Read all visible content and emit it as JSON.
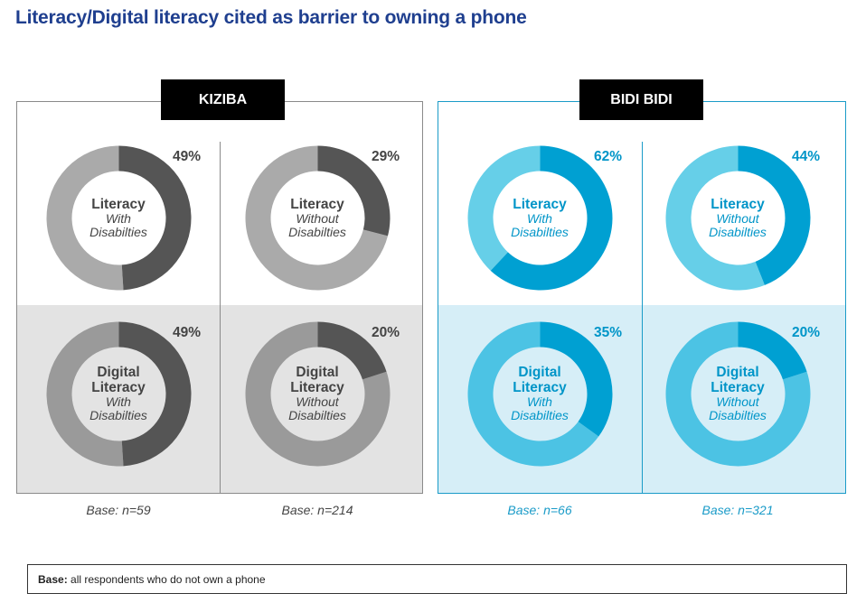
{
  "title": "Literacy/Digital literacy cited as barrier to owning a phone",
  "colors": {
    "title": "#1f3f8f",
    "kiziba_dark": "#555555",
    "kiziba_light_top": "#aaaaaa",
    "kiziba_light_bottom": "#9a9a9a",
    "bidi_dark": "#00a0d2",
    "bidi_light_top": "#66cfe8",
    "bidi_light_bottom": "#4cc3e4"
  },
  "sites": [
    {
      "name": "KIZIBA",
      "bases": [
        "Base: n=59",
        "Base: n=214"
      ],
      "base_color": "#444444",
      "text_color": "#444444",
      "charts": [
        {
          "measure_lines": [
            "Literacy"
          ],
          "group_lines": [
            "With",
            "Disabilties"
          ],
          "pct_label": "49%"
        },
        {
          "measure_lines": [
            "Literacy"
          ],
          "group_lines": [
            "Without",
            "Disabilties"
          ],
          "pct_label": "29%"
        },
        {
          "measure_lines": [
            "Digital",
            "Literacy"
          ],
          "group_lines": [
            "With",
            "Disabilties"
          ],
          "pct_label": "49%"
        },
        {
          "measure_lines": [
            "Digital",
            "Literacy"
          ],
          "group_lines": [
            "Without",
            "Disabilties"
          ],
          "pct_label": "20%"
        }
      ]
    },
    {
      "name": "BIDI BIDI",
      "bases": [
        "Base: n=66",
        "Base: n=321"
      ],
      "base_color": "#1a9bc8",
      "text_color": "#0095c8",
      "charts": [
        {
          "measure_lines": [
            "Literacy"
          ],
          "group_lines": [
            "With",
            "Disabilties"
          ],
          "pct_label": "62%"
        },
        {
          "measure_lines": [
            "Literacy"
          ],
          "group_lines": [
            "Without",
            "Disabilties"
          ],
          "pct_label": "44%"
        },
        {
          "measure_lines": [
            "Digital",
            "Literacy"
          ],
          "group_lines": [
            "With",
            "Disabilties"
          ],
          "pct_label": "35%"
        },
        {
          "measure_lines": [
            "Digital",
            "Literacy"
          ],
          "group_lines": [
            "Without",
            "Disabilties"
          ],
          "pct_label": "20%"
        }
      ]
    }
  ],
  "note": {
    "label": "Base:",
    "text": "all respondents who do not own a phone"
  },
  "chart_data": {
    "type": "pie",
    "variant": "donut",
    "title": "Literacy/Digital literacy cited as barrier to owning a phone",
    "unit": "%",
    "charts": [
      {
        "site": "KIZIBA",
        "measure": "Literacy",
        "group": "With Disabilties",
        "value": 49,
        "base": "n=59"
      },
      {
        "site": "KIZIBA",
        "measure": "Literacy",
        "group": "Without Disabilties",
        "value": 29,
        "base": "n=214"
      },
      {
        "site": "KIZIBA",
        "measure": "Digital Literacy",
        "group": "With Disabilties",
        "value": 49,
        "base": "n=59"
      },
      {
        "site": "KIZIBA",
        "measure": "Digital Literacy",
        "group": "Without Disabilties",
        "value": 20,
        "base": "n=214"
      },
      {
        "site": "BIDI BIDI",
        "measure": "Literacy",
        "group": "With Disabilties",
        "value": 62,
        "base": "n=66"
      },
      {
        "site": "BIDI BIDI",
        "measure": "Literacy",
        "group": "Without Disabilties",
        "value": 44,
        "base": "n=321"
      },
      {
        "site": "BIDI BIDI",
        "measure": "Digital Literacy",
        "group": "With Disabilties",
        "value": 35,
        "base": "n=66"
      },
      {
        "site": "BIDI BIDI",
        "measure": "Digital Literacy",
        "group": "Without Disabilties",
        "value": 20,
        "base": "n=321"
      }
    ]
  }
}
